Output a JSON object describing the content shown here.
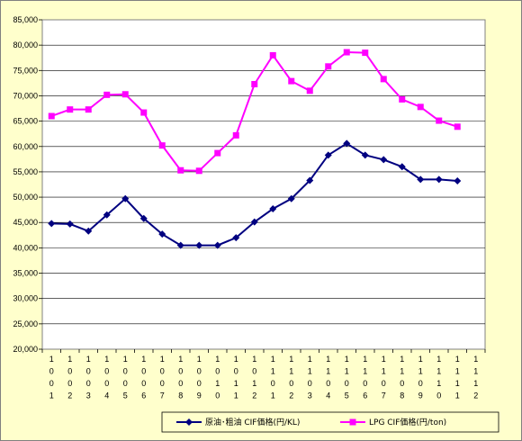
{
  "chart_data": {
    "type": "line",
    "title": "",
    "xlabel": "",
    "ylabel": "",
    "ylim": [
      20000,
      85000
    ],
    "ytick_step": 5000,
    "grid": "horizontal",
    "legend_position": "bottom",
    "background": "#ffffcc",
    "plot_background": "#ffffff",
    "categories": [
      "1001",
      "1002",
      "1003",
      "1004",
      "1005",
      "1006",
      "1007",
      "1008",
      "1009",
      "1010",
      "1011",
      "1012",
      "1101",
      "1102",
      "1103",
      "1104",
      "1105",
      "1106",
      "1107",
      "1108",
      "1109",
      "1110",
      "1111",
      "1112"
    ],
    "series": [
      {
        "name": "原油･粗油 CIF価格(円/KL)",
        "color": "#000080",
        "marker": "diamond",
        "values": [
          44800,
          44700,
          43300,
          46500,
          49700,
          45800,
          42700,
          40500,
          40500,
          40500,
          42000,
          45100,
          47700,
          49700,
          53300,
          58300,
          60600,
          58300,
          57400,
          56000,
          53500,
          53500,
          53200,
          null
        ]
      },
      {
        "name": "LPG CIF価格(円/ton)",
        "color": "#ff00ff",
        "marker": "square",
        "values": [
          66000,
          67300,
          67300,
          70200,
          70300,
          66700,
          60200,
          55300,
          55200,
          58700,
          62200,
          72300,
          78000,
          72900,
          71000,
          75800,
          78600,
          78500,
          73300,
          69300,
          67800,
          65100,
          63900,
          null
        ]
      }
    ]
  }
}
